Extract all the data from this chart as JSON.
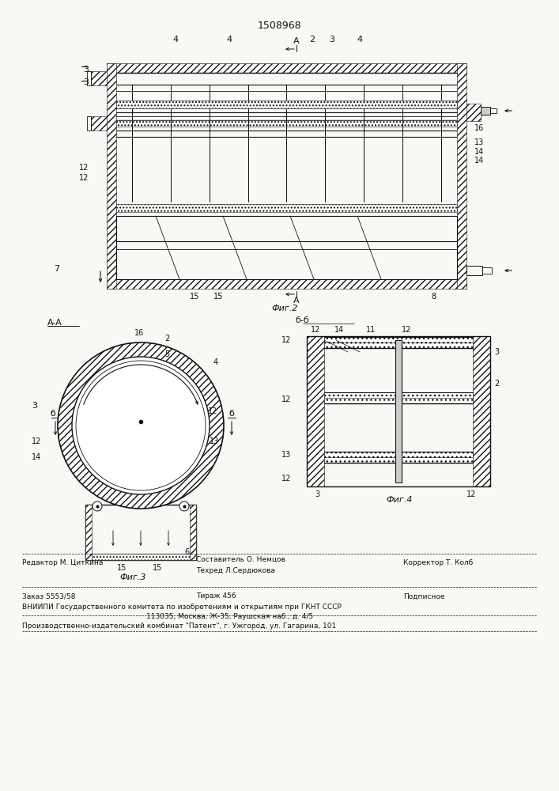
{
  "patent_number": "1508968",
  "bg": "#f8f8f4",
  "lc": "#111111",
  "fig2_caption": "Фиг.2",
  "fig3_caption": "Фиг.3",
  "fig4_caption": "Фиг.4",
  "footer_editor": "Редактор М. Циткина",
  "footer_comp": "Составитель О. Немцов",
  "footer_tech": "Техред Л.Сердюкова",
  "footer_corr": "Корректор Т. Колб",
  "footer_order": "Заказ 5553/58",
  "footer_circ": "Тираж 456",
  "footer_sign": "Подписное",
  "footer_org1": "ВНИИПИ Государственного комитета по изобретениям и открытиям при ГКНТ СССР",
  "footer_org2": "113035, Москва, Ж-35, Раушская наб., д. 4/5",
  "footer_prod": "Производственно-издательский комбинат \"Патент\", г. Ужгород, ул. Гагарина, 101"
}
